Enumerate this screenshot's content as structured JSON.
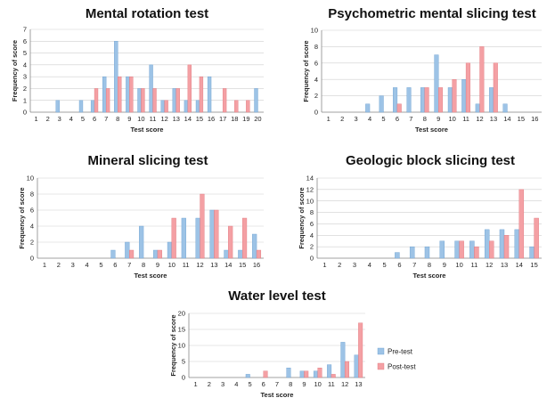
{
  "colors": {
    "pre": "#9dc3e6",
    "pre_edge": "#6a9fd0",
    "post": "#f4a0a4",
    "post_edge": "#e0767c"
  },
  "legend": {
    "pre_label": "Pre-test",
    "post_label": "Post-test"
  },
  "chart_data": [
    {
      "type": "bar",
      "title": "Mental rotation test",
      "xlabel": "Test score",
      "ylabel": "Frequency of score",
      "ylim": [
        0,
        7
      ],
      "yticks": [
        0,
        1,
        2,
        3,
        4,
        5,
        6,
        7
      ],
      "categories": [
        "1",
        "2",
        "3",
        "4",
        "5",
        "6",
        "7",
        "8",
        "9",
        "10",
        "11",
        "12",
        "13",
        "14",
        "15",
        "16",
        "17",
        "18",
        "19",
        "20"
      ],
      "series": [
        {
          "name": "Pre-test",
          "values": [
            0,
            0,
            1,
            0,
            1,
            1,
            3,
            6,
            3,
            2,
            4,
            1,
            2,
            1,
            1,
            3,
            0,
            0,
            0,
            2
          ]
        },
        {
          "name": "Post-test",
          "values": [
            0,
            0,
            0,
            0,
            0,
            2,
            2,
            3,
            3,
            2,
            2,
            1,
            2,
            4,
            3,
            0,
            2,
            1,
            1,
            0
          ]
        }
      ]
    },
    {
      "type": "bar",
      "title": "Psychometric mental slicing test",
      "xlabel": "Test score",
      "ylabel": "Frequency of score",
      "ylim": [
        0,
        10
      ],
      "yticks": [
        0,
        2,
        4,
        6,
        8,
        10
      ],
      "categories": [
        "1",
        "2",
        "3",
        "4",
        "5",
        "6",
        "7",
        "8",
        "9",
        "10",
        "11",
        "12",
        "13",
        "14",
        "15",
        "16"
      ],
      "series": [
        {
          "name": "Pre-test",
          "values": [
            0,
            0,
            0,
            1,
            2,
            3,
            3,
            3,
            7,
            3,
            4,
            1,
            3,
            1,
            0,
            0
          ]
        },
        {
          "name": "Post-test",
          "values": [
            0,
            0,
            0,
            0,
            0,
            1,
            0,
            3,
            3,
            4,
            6,
            8,
            6,
            0,
            0,
            0
          ]
        }
      ]
    },
    {
      "type": "bar",
      "title": "Mineral slicing test",
      "xlabel": "Test score",
      "ylabel": "Frequency of score",
      "ylim": [
        0,
        10
      ],
      "yticks": [
        0,
        2,
        4,
        6,
        8,
        10
      ],
      "categories": [
        "1",
        "2",
        "3",
        "4",
        "5",
        "6",
        "7",
        "8",
        "9",
        "10",
        "11",
        "12",
        "13",
        "14",
        "15",
        "16"
      ],
      "series": [
        {
          "name": "Pre-test",
          "values": [
            0,
            0,
            0,
            0,
            0,
            1,
            2,
            4,
            1,
            2,
            5,
            5,
            6,
            1,
            1,
            3
          ]
        },
        {
          "name": "Post-test",
          "values": [
            0,
            0,
            0,
            0,
            0,
            0,
            1,
            0,
            1,
            5,
            0,
            8,
            6,
            4,
            5,
            1
          ]
        }
      ]
    },
    {
      "type": "bar",
      "title": "Geologic block slicing test",
      "xlabel": "Test score",
      "ylabel": "Frequency of score",
      "ylim": [
        0,
        14
      ],
      "yticks": [
        0,
        2,
        4,
        6,
        8,
        10,
        12,
        14
      ],
      "categories": [
        "1",
        "2",
        "3",
        "4",
        "5",
        "6",
        "7",
        "8",
        "9",
        "10",
        "11",
        "12",
        "13",
        "14",
        "15"
      ],
      "series": [
        {
          "name": "Pre-test",
          "values": [
            0,
            0,
            0,
            0,
            0,
            1,
            2,
            2,
            3,
            3,
            3,
            5,
            5,
            5,
            2
          ]
        },
        {
          "name": "Post-test",
          "values": [
            0,
            0,
            0,
            0,
            0,
            0,
            0,
            0,
            0,
            3,
            2,
            3,
            4,
            12,
            7
          ]
        }
      ]
    },
    {
      "type": "bar",
      "title": "Water level test",
      "xlabel": "Test score",
      "ylabel": "Frequency of score",
      "ylim": [
        0,
        20
      ],
      "yticks": [
        0,
        5,
        10,
        15,
        20
      ],
      "categories": [
        "1",
        "2",
        "3",
        "4",
        "5",
        "6",
        "7",
        "8",
        "9",
        "10",
        "11",
        "12",
        "13"
      ],
      "legend": "right",
      "series": [
        {
          "name": "Pre-test",
          "values": [
            0,
            0,
            0,
            0,
            1,
            0,
            0,
            3,
            2,
            2,
            4,
            11,
            7
          ]
        },
        {
          "name": "Post-test",
          "values": [
            0,
            0,
            0,
            0,
            0,
            2,
            0,
            0,
            2,
            3,
            1,
            5,
            17
          ]
        }
      ]
    }
  ]
}
